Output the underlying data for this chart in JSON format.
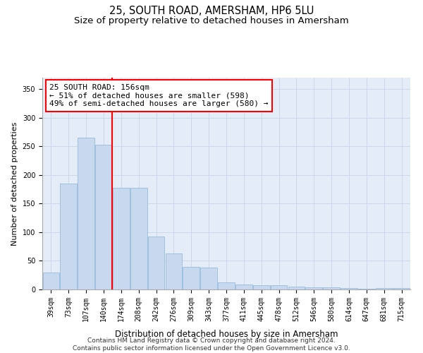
{
  "title": "25, SOUTH ROAD, AMERSHAM, HP6 5LU",
  "subtitle": "Size of property relative to detached houses in Amersham",
  "xlabel": "Distribution of detached houses by size in Amersham",
  "ylabel": "Number of detached properties",
  "categories": [
    "39sqm",
    "73sqm",
    "107sqm",
    "140sqm",
    "174sqm",
    "208sqm",
    "242sqm",
    "276sqm",
    "309sqm",
    "343sqm",
    "377sqm",
    "411sqm",
    "445sqm",
    "478sqm",
    "512sqm",
    "546sqm",
    "580sqm",
    "614sqm",
    "647sqm",
    "681sqm",
    "715sqm"
  ],
  "values": [
    29,
    185,
    265,
    253,
    178,
    178,
    93,
    63,
    40,
    38,
    12,
    9,
    8,
    7,
    5,
    4,
    4,
    2,
    1,
    3,
    2
  ],
  "bar_color": "#c8d8ee",
  "bar_edge_color": "#8ab4d8",
  "vline_x_index": 3,
  "vline_color": "red",
  "annotation_text": "25 SOUTH ROAD: 156sqm\n← 51% of detached houses are smaller (598)\n49% of semi-detached houses are larger (580) →",
  "annotation_box_color": "white",
  "annotation_box_edge_color": "red",
  "ylim": [
    0,
    370
  ],
  "yticks": [
    0,
    50,
    100,
    150,
    200,
    250,
    300,
    350
  ],
  "grid_color": "#c8d4e8",
  "background_color": "#e4ecf8",
  "footer_text": "Contains HM Land Registry data © Crown copyright and database right 2024.\nContains public sector information licensed under the Open Government Licence v3.0.",
  "title_fontsize": 10.5,
  "subtitle_fontsize": 9.5,
  "xlabel_fontsize": 8.5,
  "ylabel_fontsize": 8,
  "tick_fontsize": 7,
  "annotation_fontsize": 8,
  "footer_fontsize": 6.5
}
